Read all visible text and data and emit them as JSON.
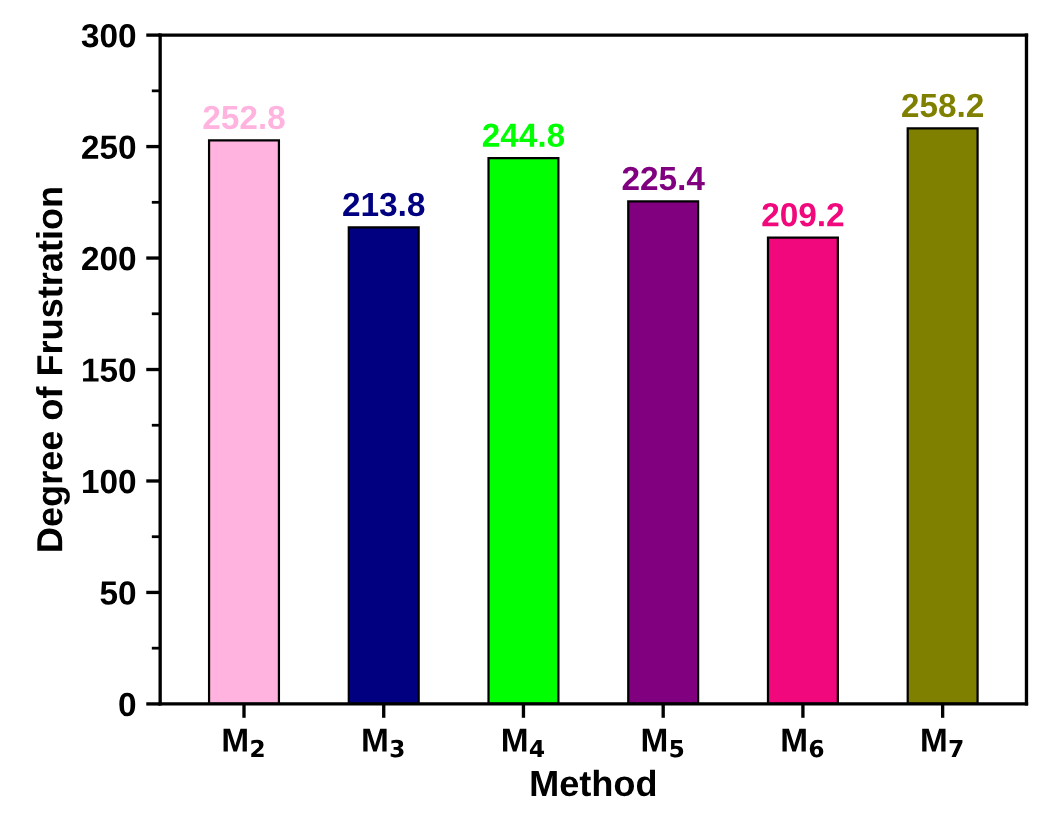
{
  "chart_data": {
    "type": "bar",
    "xlabel": "Method",
    "ylabel": "Degree of Frustration",
    "categories": [
      "M$_{2}$",
      "M$_{3}$",
      "M$_{4}$",
      "M$_{5}$",
      "M$_{6}$",
      "M$_{7}$"
    ],
    "values": [
      252.8,
      213.8,
      244.8,
      225.4,
      209.2,
      258.2
    ],
    "colors": [
      "#ffb3de",
      "#000080",
      "#00ff00",
      "#800080",
      "#f0087c",
      "#808000"
    ],
    "ylim": [
      0,
      300
    ],
    "yticks": [
      0,
      50,
      100,
      150,
      200,
      250,
      300
    ],
    "data_labels": true,
    "grid": false,
    "legend": false
  }
}
